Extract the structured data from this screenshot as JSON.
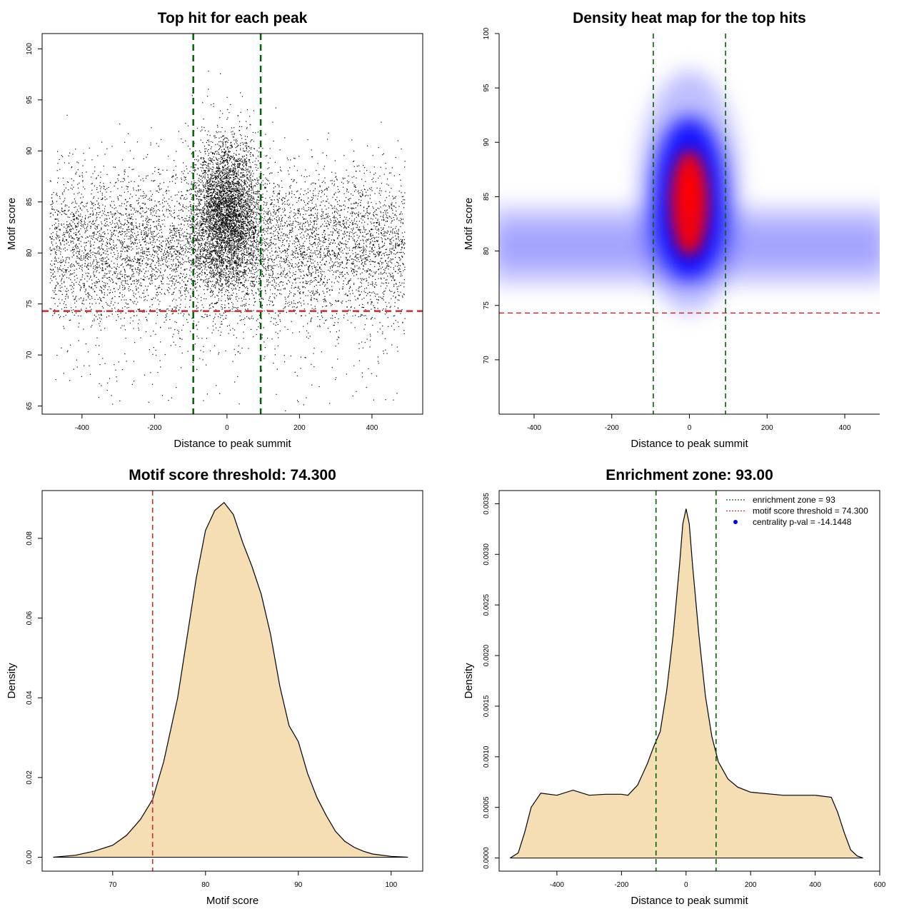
{
  "chart_data": [
    {
      "type": "scatter",
      "title": "Top hit for each peak",
      "xlabel": "Distance to peak summit",
      "ylabel": "Motif score",
      "xlim": [
        -510,
        540
      ],
      "ylim": [
        64.2,
        101.5
      ],
      "xticks": [
        -400,
        -200,
        0,
        200,
        400
      ],
      "yticks": [
        65,
        70,
        75,
        80,
        85,
        90,
        95,
        100
      ],
      "grid": false,
      "points_summary": {
        "background_x_range": [
          -490,
          490
        ],
        "background_score_center": 80.5,
        "central_cluster_x_center": 0,
        "central_cluster_score_center": 84,
        "score_max": 100,
        "score_min": 65.2
      },
      "reference_lines": {
        "vertical": [
          -93,
          93
        ],
        "horizontal": 74.3
      },
      "colors": {
        "points": "#000000",
        "vertical_lines": "#006400",
        "horizontal_line": "#d22a2a"
      }
    },
    {
      "type": "heatmap",
      "title": "Density heat map for the top hits",
      "xlabel": "Distance to peak summit",
      "ylabel": "Motif score",
      "xlim": [
        -490,
        490
      ],
      "ylim": [
        65,
        100
      ],
      "xticks": [
        -400,
        -200,
        0,
        200,
        400
      ],
      "yticks": [
        70,
        75,
        80,
        85,
        90,
        95,
        100
      ],
      "density_peak": {
        "x": 0,
        "y": 84.8
      },
      "background_band_score": 80.5,
      "reference_lines": {
        "vertical": [
          -93,
          93
        ],
        "horizontal": 74.3
      },
      "colors": {
        "low": "#ffffff",
        "mid": "#0000ff",
        "high": "#ff0000",
        "vertical_lines": "#006400",
        "horizontal_line": "#d22a2a"
      }
    },
    {
      "type": "area",
      "title": "Motif score threshold: 74.300",
      "xlabel": "Motif score",
      "ylabel": "Density",
      "xlim": [
        62.4,
        103.4
      ],
      "ylim": [
        -0.0035,
        0.092
      ],
      "xticks": [
        70,
        80,
        90,
        100
      ],
      "yticks": [
        0.0,
        0.02,
        0.04,
        0.06,
        0.08
      ],
      "ytick_labels": [
        "0.00",
        "0.02",
        "0.04",
        "0.06",
        "0.08"
      ],
      "x": [
        63.6,
        66,
        68,
        70,
        71.5,
        73,
        74.3,
        75.5,
        77,
        78,
        79,
        80,
        81,
        82,
        83,
        84,
        85,
        86,
        87,
        88,
        89,
        90,
        91,
        92,
        93,
        94,
        95,
        96,
        97,
        98,
        100,
        101.8
      ],
      "y": [
        0.0,
        0.0005,
        0.0015,
        0.003,
        0.0055,
        0.0095,
        0.0145,
        0.024,
        0.04,
        0.055,
        0.07,
        0.082,
        0.087,
        0.089,
        0.086,
        0.079,
        0.073,
        0.066,
        0.056,
        0.043,
        0.033,
        0.029,
        0.021,
        0.015,
        0.0105,
        0.0065,
        0.004,
        0.0025,
        0.0015,
        0.0008,
        0.0002,
        0.0
      ],
      "reference_lines": {
        "vertical": [
          74.3
        ]
      },
      "colors": {
        "fill": "#f5deb3",
        "line": "#000000",
        "threshold_line": "#d22a2a"
      }
    },
    {
      "type": "area",
      "title": "Enrichment zone: 93.00",
      "xlabel": "Distance to peak summit",
      "ylabel": "Density",
      "xlim": [
        -579,
        600
      ],
      "ylim": [
        -0.00013,
        0.00363
      ],
      "xticks": [
        -400,
        -200,
        0,
        200,
        400,
        600
      ],
      "yticks": [
        0.0,
        0.0005,
        0.001,
        0.0015,
        0.002,
        0.0025,
        0.003,
        0.0035
      ],
      "ytick_labels": [
        "0.0000",
        "0.0005",
        "0.0010",
        "0.0015",
        "0.0020",
        "0.0025",
        "0.0030",
        "0.0035"
      ],
      "x": [
        -545,
        -520,
        -500,
        -480,
        -450,
        -400,
        -350,
        -300,
        -250,
        -200,
        -180,
        -150,
        -120,
        -100,
        -80,
        -60,
        -40,
        -20,
        -10,
        0,
        10,
        20,
        40,
        60,
        80,
        100,
        130,
        160,
        200,
        300,
        400,
        450,
        470,
        490,
        510,
        530,
        548
      ],
      "y": [
        0.0,
        5e-05,
        0.00025,
        0.0005,
        0.00064,
        0.00062,
        0.00067,
        0.00062,
        0.00063,
        0.00063,
        0.00062,
        0.00072,
        0.00093,
        0.0011,
        0.00125,
        0.00165,
        0.0022,
        0.0029,
        0.0033,
        0.00345,
        0.0033,
        0.0029,
        0.0022,
        0.0016,
        0.0012,
        0.00095,
        0.00078,
        0.0007,
        0.00065,
        0.00062,
        0.00062,
        0.0006,
        0.00045,
        0.00025,
        8e-05,
        2e-05,
        0.0
      ],
      "reference_lines": {
        "vertical": [
          -93,
          93
        ]
      },
      "legend": {
        "position": "top-right",
        "entries": [
          {
            "label": "enrichment zone = 93",
            "style": "dotted",
            "color": "#006400"
          },
          {
            "label": "motif score threshold = 74.300",
            "style": "dotted",
            "color": "#d22a2a"
          },
          {
            "label": "centrality p-val = -14.1448",
            "style": "dot",
            "color": "#0000ff"
          }
        ]
      },
      "colors": {
        "fill": "#f5deb3",
        "line": "#000000",
        "vertical_lines": "#006400"
      }
    }
  ]
}
